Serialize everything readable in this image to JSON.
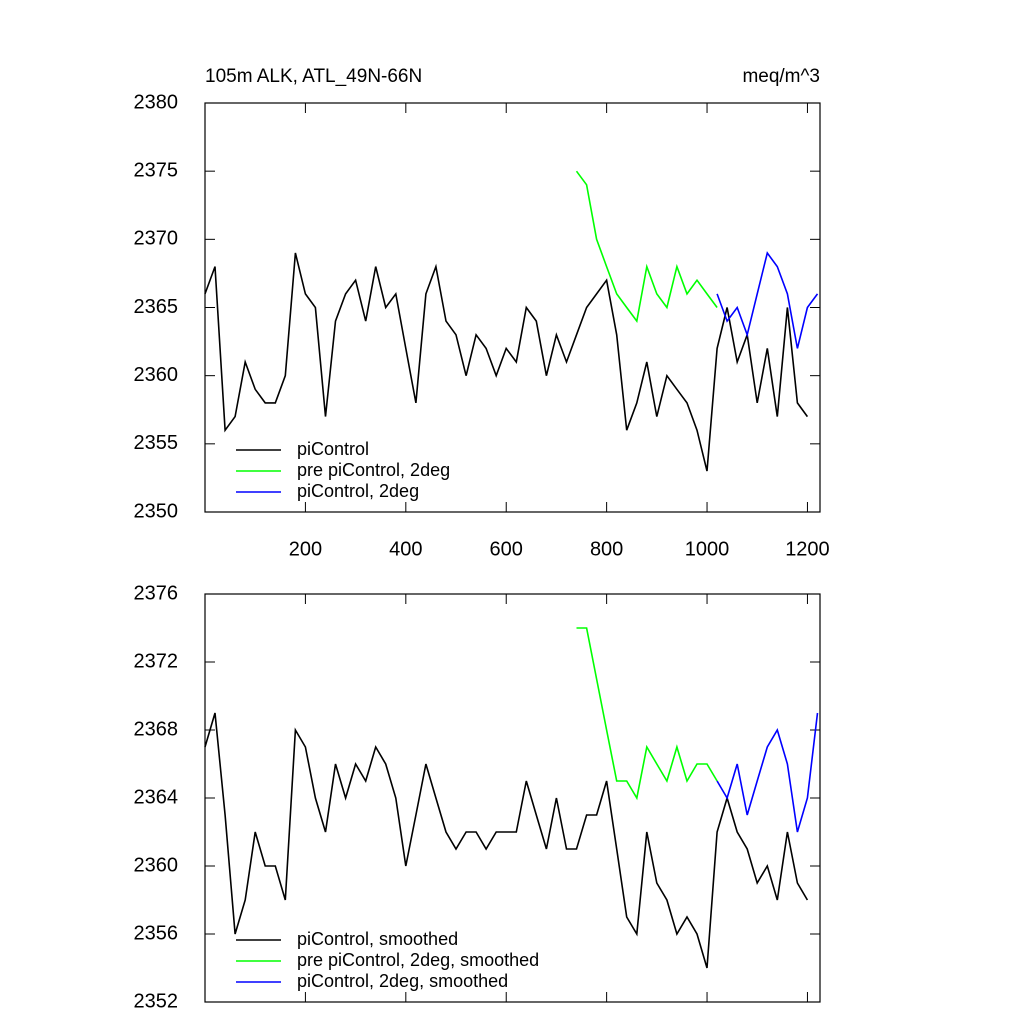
{
  "chart_data": [
    {
      "type": "line",
      "title": "105m ALK, ATL_49N-66N",
      "units": "meq/m^3",
      "x": [
        0,
        20,
        40,
        60,
        80,
        100,
        120,
        140,
        160,
        180,
        200,
        220,
        240,
        260,
        280,
        300,
        320,
        340,
        360,
        380,
        400,
        420,
        440,
        460,
        480,
        500,
        520,
        540,
        560,
        580,
        600,
        620,
        640,
        660,
        680,
        700,
        720,
        740,
        760,
        780,
        800,
        820,
        840,
        860,
        880,
        900,
        920,
        940,
        960,
        980,
        1000,
        1020,
        1040,
        1060,
        1080,
        1100,
        1120,
        1140,
        1160,
        1180,
        1200,
        1220
      ],
      "series": [
        {
          "name": "piControl",
          "color": "#000000",
          "values": [
            2366,
            2368,
            2356,
            2357,
            2361,
            2359,
            2358,
            2358,
            2360,
            2369,
            2366,
            2365,
            2357,
            2364,
            2366,
            2367,
            2364,
            2368,
            2365,
            2366,
            2362,
            2358,
            2366,
            2368,
            2364,
            2363,
            2360,
            2363,
            2362,
            2360,
            2362,
            2361,
            2365,
            2364,
            2360,
            2363,
            2361,
            2363,
            2365,
            2366,
            2367,
            2363,
            2356,
            2358,
            2361,
            2357,
            2360,
            2359,
            2358,
            2356,
            2353,
            2362,
            2365,
            2361,
            2363,
            2358,
            2362,
            2357,
            2365,
            2358,
            2357,
            null
          ]
        },
        {
          "name": "pre piControl, 2deg",
          "color": "#00ff00",
          "values": [
            null,
            null,
            null,
            null,
            null,
            null,
            null,
            null,
            null,
            null,
            null,
            null,
            null,
            null,
            null,
            null,
            null,
            null,
            null,
            null,
            null,
            null,
            null,
            null,
            null,
            null,
            null,
            null,
            null,
            null,
            null,
            null,
            null,
            null,
            null,
            null,
            null,
            2375,
            2374,
            2370,
            2368,
            2366,
            2365,
            2364,
            2368,
            2366,
            2365,
            2368,
            2366,
            2367,
            2366,
            2365,
            null,
            null,
            null,
            null,
            null,
            null,
            null,
            null,
            null,
            null
          ]
        },
        {
          "name": "piControl, 2deg",
          "color": "#0000ff",
          "values": [
            null,
            null,
            null,
            null,
            null,
            null,
            null,
            null,
            null,
            null,
            null,
            null,
            null,
            null,
            null,
            null,
            null,
            null,
            null,
            null,
            null,
            null,
            null,
            null,
            null,
            null,
            null,
            null,
            null,
            null,
            null,
            null,
            null,
            null,
            null,
            null,
            null,
            null,
            null,
            null,
            null,
            null,
            null,
            null,
            null,
            null,
            null,
            null,
            null,
            null,
            null,
            2366,
            2364,
            2365,
            2363,
            2366,
            2369,
            2368,
            2366,
            2362,
            2365,
            2366
          ]
        }
      ],
      "xlim": [
        0,
        1225
      ],
      "xticks": [
        200,
        400,
        600,
        800,
        1000,
        1200
      ],
      "xtick_labels": true,
      "ylim": [
        2350,
        2380
      ],
      "yticks": [
        2350,
        2355,
        2360,
        2365,
        2370,
        2375,
        2380
      ],
      "legend": "lower left"
    },
    {
      "type": "line",
      "x": [
        0,
        20,
        40,
        60,
        80,
        100,
        120,
        140,
        160,
        180,
        200,
        220,
        240,
        260,
        280,
        300,
        320,
        340,
        360,
        380,
        400,
        420,
        440,
        460,
        480,
        500,
        520,
        540,
        560,
        580,
        600,
        620,
        640,
        660,
        680,
        700,
        720,
        740,
        760,
        780,
        800,
        820,
        840,
        860,
        880,
        900,
        920,
        940,
        960,
        980,
        1000,
        1020,
        1040,
        1060,
        1080,
        1100,
        1120,
        1140,
        1160,
        1180,
        1200,
        1220
      ],
      "series": [
        {
          "name": "piControl, smoothed",
          "color": "#000000",
          "values": [
            2367,
            2369,
            2363,
            2356,
            2358,
            2362,
            2360,
            2360,
            2358,
            2368,
            2367,
            2364,
            2362,
            2366,
            2364,
            2366,
            2365,
            2367,
            2366,
            2364,
            2360,
            2363,
            2366,
            2364,
            2362,
            2361,
            2362,
            2362,
            2361,
            2362,
            2362,
            2362,
            2365,
            2363,
            2361,
            2364,
            2361,
            2361,
            2363,
            2363,
            2365,
            2361,
            2357,
            2356,
            2362,
            2359,
            2358,
            2356,
            2357,
            2356,
            2354,
            2362,
            2364,
            2362,
            2361,
            2359,
            2360,
            2358,
            2362,
            2359,
            2358,
            null
          ]
        },
        {
          "name": "pre piControl, 2deg, smoothed",
          "color": "#00ff00",
          "values": [
            null,
            null,
            null,
            null,
            null,
            null,
            null,
            null,
            null,
            null,
            null,
            null,
            null,
            null,
            null,
            null,
            null,
            null,
            null,
            null,
            null,
            null,
            null,
            null,
            null,
            null,
            null,
            null,
            null,
            null,
            null,
            null,
            null,
            null,
            null,
            null,
            null,
            2374,
            2374,
            2371,
            2368,
            2365,
            2365,
            2364,
            2367,
            2366,
            2365,
            2367,
            2365,
            2366,
            2366,
            2365,
            null,
            null,
            null,
            null,
            null,
            null,
            null,
            null,
            null,
            null
          ]
        },
        {
          "name": "piControl, 2deg, smoothed",
          "color": "#0000ff",
          "values": [
            null,
            null,
            null,
            null,
            null,
            null,
            null,
            null,
            null,
            null,
            null,
            null,
            null,
            null,
            null,
            null,
            null,
            null,
            null,
            null,
            null,
            null,
            null,
            null,
            null,
            null,
            null,
            null,
            null,
            null,
            null,
            null,
            null,
            null,
            null,
            null,
            null,
            null,
            null,
            null,
            null,
            null,
            null,
            null,
            null,
            null,
            null,
            null,
            null,
            null,
            null,
            2365,
            2364,
            2366,
            2363,
            2365,
            2367,
            2368,
            2366,
            2362,
            2364,
            2369
          ]
        }
      ],
      "xlim": [
        0,
        1225
      ],
      "xticks": [
        200,
        400,
        600,
        800,
        1000,
        1200
      ],
      "xtick_labels": false,
      "ylim": [
        2352,
        2376
      ],
      "yticks": [
        2352,
        2356,
        2360,
        2364,
        2368,
        2372,
        2376
      ],
      "legend": "lower left"
    }
  ]
}
